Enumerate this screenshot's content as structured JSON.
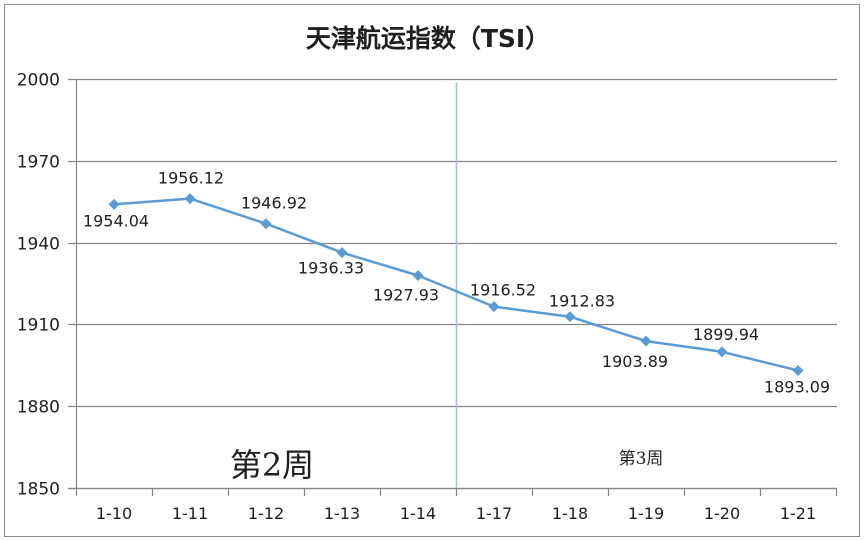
{
  "chart_data": {
    "type": "line",
    "title": "天津航运指数（TSI）",
    "categories": [
      "1-10",
      "1-11",
      "1-12",
      "1-13",
      "1-14",
      "1-17",
      "1-18",
      "1-19",
      "1-20",
      "1-21"
    ],
    "series": [
      {
        "values": [
          1954.04,
          1956.12,
          1946.92,
          1936.33,
          1927.93,
          1916.52,
          1912.83,
          1903.89,
          1899.94,
          1893.09
        ]
      }
    ],
    "ylim": [
      1850,
      2000
    ],
    "yticks": [
      1850,
      1880,
      1910,
      1940,
      1970,
      2000
    ],
    "grid": true,
    "annotations": [
      {
        "text": "第2周"
      },
      {
        "text": "第3周"
      }
    ]
  },
  "colors": {
    "series_line": "#5B9BD5",
    "gridline": "#868686",
    "divider": "#9DC3E6",
    "border": "#8C8C8C"
  }
}
